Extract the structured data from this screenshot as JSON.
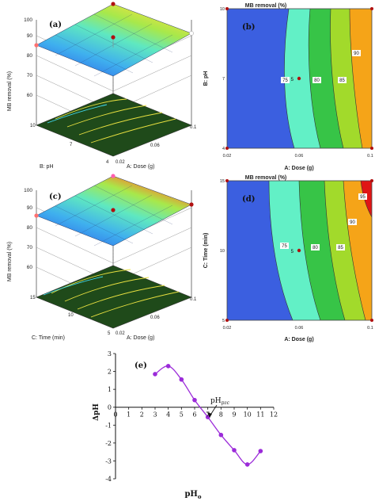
{
  "colors": {
    "blue": "#3b5fe0",
    "cyan": "#62f0c6",
    "green": "#37c447",
    "lime": "#a2da2b",
    "orange": "#f5a418",
    "red": "#e01515",
    "frame": "#555555",
    "floor": "#1f4a1a",
    "purple": "#9b2bd9",
    "design_point": "#b01010"
  },
  "chart_data": [
    {
      "panel": "(a)",
      "type": "surface3d",
      "zlabel": "MB removal (%)",
      "xlabel": "A: Dose (g)",
      "ylabel": "B: pH",
      "z_ticks": [
        "100",
        "90",
        "80",
        "70",
        "60"
      ],
      "x_ticks": [
        "0.02",
        "0.06",
        "0.1"
      ],
      "y_ticks": [
        "4",
        "7",
        "10"
      ],
      "zlim": [
        60,
        100
      ]
    },
    {
      "panel": "(b)",
      "type": "contour",
      "title": "MB removal (%)",
      "xlabel": "A: Dose (g)",
      "ylabel": "B: pH",
      "x_ticks": [
        "0.02",
        "0.06",
        "0.1"
      ],
      "y_ticks": [
        "4",
        "7",
        "10"
      ],
      "xlim": [
        0.02,
        0.1
      ],
      "ylim": [
        4,
        10
      ],
      "contour_labels": [
        "75",
        "80",
        "85",
        "90"
      ],
      "center_label": "5"
    },
    {
      "panel": "(c)",
      "type": "surface3d",
      "zlabel": "MB removal (%)",
      "xlabel": "A: Dose (g)",
      "ylabel": "C: Time  (min)",
      "z_ticks": [
        "100",
        "90",
        "80",
        "70",
        "60"
      ],
      "x_ticks": [
        "0.02",
        "0.06",
        "0.1"
      ],
      "y_ticks": [
        "5",
        "10",
        "15"
      ],
      "zlim": [
        60,
        100
      ]
    },
    {
      "panel": "(d)",
      "type": "contour",
      "title": "MB removal (%)",
      "xlabel": "A: Dose (g)",
      "ylabel": "C: Time  (min)",
      "x_ticks": [
        "0.02",
        "0.06",
        "0.1"
      ],
      "y_ticks": [
        "5",
        "10",
        "15"
      ],
      "xlim": [
        0.02,
        0.1
      ],
      "ylim": [
        5,
        15
      ],
      "contour_labels": [
        "75",
        "80",
        "85",
        "90",
        "95"
      ],
      "center_label": "5"
    },
    {
      "panel": "(e)",
      "type": "line",
      "xlabel": "pH",
      "xlabel_sub": "o",
      "ylabel": "ΔpH",
      "annotation": "pH",
      "annotation_sub": "pzc",
      "x_ticks": [
        "0",
        "1",
        "2",
        "3",
        "4",
        "5",
        "6",
        "7",
        "8",
        "9",
        "10",
        "11",
        "12"
      ],
      "y_ticks": [
        "3",
        "2",
        "1",
        "0",
        "-1",
        "-2",
        "-3",
        "-4"
      ],
      "xlim": [
        0,
        12
      ],
      "ylim": [
        -4,
        3
      ],
      "x": [
        3,
        4,
        5,
        6,
        7,
        8,
        9,
        10,
        11
      ],
      "y": [
        1.85,
        2.3,
        1.55,
        0.4,
        -0.55,
        -1.55,
        -2.4,
        -3.2,
        -2.45
      ]
    }
  ]
}
